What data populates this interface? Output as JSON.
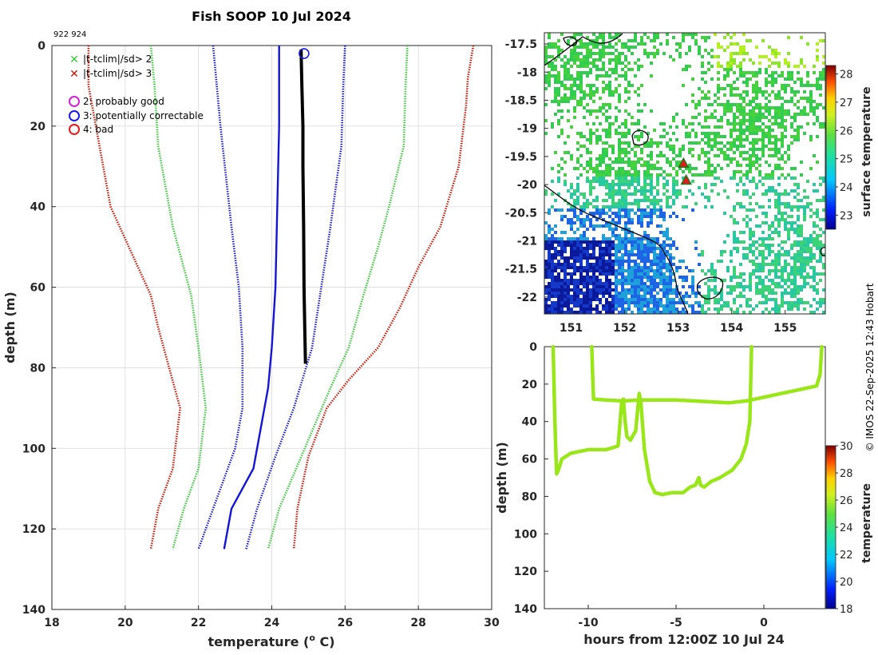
{
  "title": "Fish SOOP 10 Jul 2024",
  "id_label": "922 924",
  "credit": "© IMOS 22-Sep-2025 12:43 Hobart",
  "colors": {
    "axis": "#262626",
    "grid": "#d9d9d9",
    "green": "#33cc33",
    "red": "#cc1100",
    "blue": "#1515d6",
    "obs": "#000000",
    "trace": "#99e619",
    "magenta": "#d61fd6",
    "flag_blue": "#1a1ae6",
    "flag_red": "#e61a1a"
  },
  "legend": {
    "sd2": "|t-tclim|/sd> 2",
    "sd3": "|t-tclim|/sd> 3",
    "q2": "2: probably good",
    "q3": "3: potentially correctable",
    "q4": "4: bad"
  },
  "chart_data": [
    {
      "type": "line",
      "name": "profile",
      "xlabel": "temperature (",
      "xlabel_sup": "o",
      "xlabel_tail": " C)",
      "ylabel": "depth (m)",
      "xlim": [
        18,
        30
      ],
      "ylim": [
        0,
        140
      ],
      "xticks": [
        18,
        20,
        22,
        24,
        26,
        28,
        30
      ],
      "yticks": [
        0,
        20,
        40,
        60,
        80,
        100,
        120,
        140
      ],
      "grid": true,
      "series": [
        {
          "name": "clim +3sd",
          "style": "dotted",
          "color": "red",
          "points": [
            [
              29.5,
              0
            ],
            [
              29.35,
              8
            ],
            [
              29.3,
              15
            ],
            [
              29.1,
              30
            ],
            [
              28.6,
              45
            ],
            [
              28.0,
              55
            ],
            [
              27.5,
              65
            ],
            [
              26.9,
              75
            ],
            [
              26.1,
              83
            ],
            [
              25.5,
              90
            ],
            [
              25.0,
              102
            ],
            [
              24.7,
              115
            ],
            [
              24.6,
              125
            ]
          ]
        },
        {
          "name": "clim +2sd",
          "style": "dotted",
          "color": "green",
          "points": [
            [
              27.7,
              0
            ],
            [
              27.65,
              10
            ],
            [
              27.6,
              25
            ],
            [
              27.2,
              40
            ],
            [
              26.9,
              50
            ],
            [
              26.5,
              62
            ],
            [
              26.1,
              75
            ],
            [
              25.6,
              85
            ],
            [
              24.9,
              100
            ],
            [
              24.2,
              115
            ],
            [
              23.9,
              125
            ]
          ]
        },
        {
          "name": "clim +1sd",
          "style": "dotted",
          "color": "blue",
          "points": [
            [
              26.0,
              0
            ],
            [
              25.95,
              10
            ],
            [
              25.9,
              25
            ],
            [
              25.6,
              45
            ],
            [
              25.35,
              60
            ],
            [
              25.1,
              75
            ],
            [
              24.6,
              90
            ],
            [
              24.1,
              102
            ],
            [
              23.6,
              115
            ],
            [
              23.3,
              125
            ]
          ]
        },
        {
          "name": "clim mean",
          "style": "solid",
          "color": "blue",
          "points": [
            [
              24.2,
              0
            ],
            [
              24.2,
              10
            ],
            [
              24.2,
              20
            ],
            [
              24.15,
              40
            ],
            [
              24.1,
              60
            ],
            [
              24.0,
              75
            ],
            [
              23.9,
              85
            ],
            [
              23.7,
              95
            ],
            [
              23.5,
              105
            ],
            [
              22.9,
              115
            ],
            [
              22.7,
              125
            ]
          ]
        },
        {
          "name": "clim -1sd",
          "style": "dotted",
          "color": "blue",
          "points": [
            [
              22.4,
              0
            ],
            [
              22.5,
              10
            ],
            [
              22.6,
              20
            ],
            [
              22.9,
              45
            ],
            [
              23.1,
              60
            ],
            [
              23.2,
              75
            ],
            [
              23.2,
              90
            ],
            [
              23.0,
              100
            ],
            [
              22.4,
              115
            ],
            [
              22.0,
              125
            ]
          ]
        },
        {
          "name": "clim -2sd",
          "style": "dotted",
          "color": "green",
          "points": [
            [
              20.7,
              0
            ],
            [
              20.8,
              10
            ],
            [
              20.9,
              25
            ],
            [
              21.3,
              45
            ],
            [
              21.8,
              62
            ],
            [
              22.0,
              75
            ],
            [
              22.2,
              90
            ],
            [
              22.0,
              105
            ],
            [
              21.6,
              115
            ],
            [
              21.3,
              125
            ]
          ]
        },
        {
          "name": "clim -3sd",
          "style": "dotted",
          "color": "red",
          "points": [
            [
              19.0,
              0
            ],
            [
              19.0,
              10
            ],
            [
              19.3,
              25
            ],
            [
              19.6,
              40
            ],
            [
              20.2,
              52
            ],
            [
              20.7,
              62
            ],
            [
              20.9,
              70
            ],
            [
              21.2,
              80
            ],
            [
              21.5,
              90
            ],
            [
              21.3,
              105
            ],
            [
              20.9,
              115
            ],
            [
              20.7,
              125
            ]
          ]
        },
        {
          "name": "observed",
          "style": "solid",
          "color": "obs",
          "width": 4,
          "points": [
            [
              24.8,
              1
            ],
            [
              24.82,
              10
            ],
            [
              24.85,
              20
            ],
            [
              24.85,
              30
            ],
            [
              24.87,
              45
            ],
            [
              24.88,
              60
            ],
            [
              24.9,
              70
            ],
            [
              24.92,
              79
            ]
          ]
        }
      ],
      "flag_markers": [
        {
          "x": 24.88,
          "y": 1,
          "flag": 3
        }
      ]
    },
    {
      "type": "heatmap",
      "name": "surface temperature map",
      "xlim": [
        150.5,
        155.75
      ],
      "ylim": [
        -22.3,
        -17.3
      ],
      "xticks": [
        151,
        152,
        153,
        154,
        155
      ],
      "yticks": [
        -17.5,
        -18,
        -18.5,
        -19,
        -19.5,
        -20,
        -20.5,
        -21,
        -21.5,
        -22
      ],
      "colorbar": {
        "label": "surface temperature",
        "range": [
          22.5,
          28.3
        ],
        "ticks": [
          23,
          24,
          25,
          26,
          27,
          28
        ]
      },
      "markers": [
        {
          "lon": 153.1,
          "lat": -19.62
        },
        {
          "lon": 153.15,
          "lat": -19.92
        }
      ]
    },
    {
      "type": "line",
      "name": "depth vs time",
      "xlabel": "hours from 12:00Z 10 Jul 24",
      "ylabel": "depth (m)",
      "xlim": [
        -12.5,
        3.5
      ],
      "ylim": [
        0,
        140
      ],
      "xticks": [
        -10,
        -5,
        0
      ],
      "yticks": [
        0,
        20,
        40,
        60,
        80,
        100,
        120,
        140
      ],
      "colorbar": {
        "label": "temperature",
        "range": [
          18,
          30
        ],
        "ticks": [
          18,
          20,
          22,
          24,
          26,
          28,
          30
        ]
      },
      "series": [
        {
          "name": "dive 1",
          "points": [
            [
              -12.0,
              0
            ],
            [
              -11.95,
              20
            ],
            [
              -11.9,
              40
            ],
            [
              -11.85,
              55
            ],
            [
              -11.8,
              68
            ],
            [
              -11.7,
              66
            ],
            [
              -11.5,
              60
            ],
            [
              -11.0,
              57
            ],
            [
              -10.5,
              56
            ],
            [
              -10.0,
              55
            ],
            [
              -9.5,
              55
            ],
            [
              -9.0,
              55
            ],
            [
              -8.6,
              54
            ],
            [
              -8.3,
              53
            ],
            [
              -8.1,
              30
            ],
            [
              -8.0,
              28
            ],
            [
              -7.9,
              40
            ],
            [
              -7.8,
              48
            ],
            [
              -7.6,
              50
            ],
            [
              -7.3,
              45
            ],
            [
              -7.1,
              25
            ],
            [
              -7.0,
              30
            ],
            [
              -6.8,
              55
            ],
            [
              -6.5,
              72
            ],
            [
              -6.2,
              78
            ],
            [
              -5.8,
              79
            ],
            [
              -5.2,
              78
            ],
            [
              -4.6,
              78
            ],
            [
              -4.2,
              75
            ],
            [
              -3.9,
              74
            ],
            [
              -3.7,
              70
            ],
            [
              -3.6,
              74
            ],
            [
              -3.4,
              75
            ],
            [
              -3.0,
              72
            ],
            [
              -2.5,
              70
            ],
            [
              -1.8,
              66
            ],
            [
              -1.3,
              60
            ],
            [
              -1.0,
              52
            ],
            [
              -0.8,
              40
            ],
            [
              -0.75,
              20
            ],
            [
              -0.7,
              0
            ]
          ]
        },
        {
          "name": "dive 2",
          "points": [
            [
              -9.8,
              0
            ],
            [
              -9.75,
              15
            ],
            [
              -9.7,
              28
            ],
            [
              -9.0,
              28.5
            ],
            [
              -8.0,
              29
            ],
            [
              -7.0,
              28.5
            ],
            [
              -6.0,
              28.5
            ],
            [
              -5.0,
              28.5
            ],
            [
              -4.0,
              29
            ],
            [
              -3.0,
              29.5
            ],
            [
              -2.0,
              30
            ],
            [
              -1.0,
              29
            ],
            [
              0.0,
              27
            ],
            [
              1.0,
              25
            ],
            [
              2.0,
              23
            ],
            [
              3.0,
              21
            ],
            [
              3.2,
              15
            ],
            [
              3.3,
              0
            ]
          ]
        }
      ]
    }
  ]
}
